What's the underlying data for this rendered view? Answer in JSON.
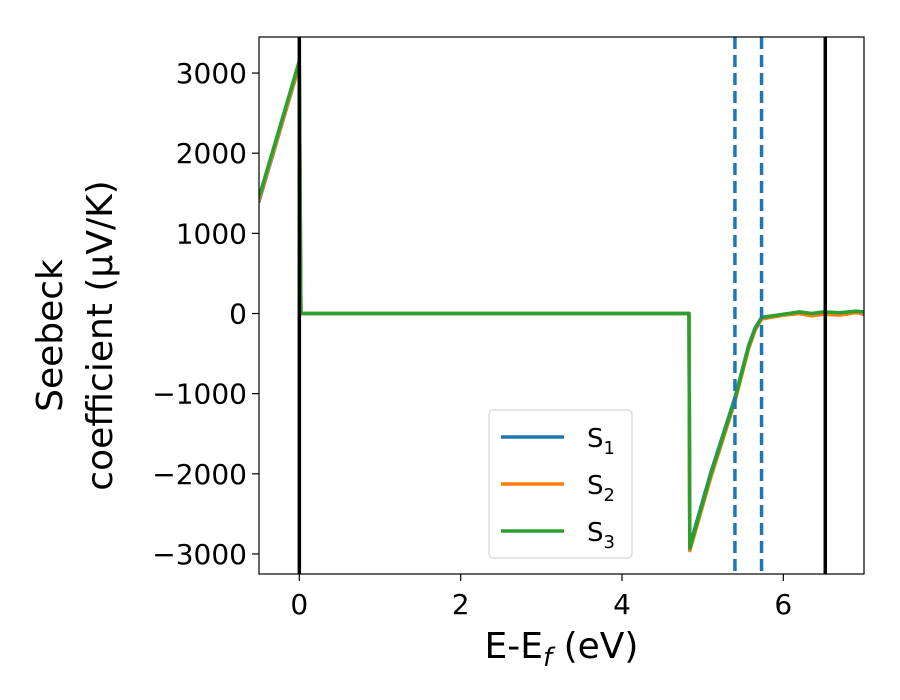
{
  "chart_data": {
    "type": "line",
    "xlabel": "E-E",
    "xlabel_sub": "f",
    "xlabel_unit": " (eV)",
    "ylabel_line1": "Seebeck",
    "ylabel_line2": "coefficient  (μV/K)",
    "xlim": [
      -0.5,
      7.0
    ],
    "ylim": [
      -3250,
      3450
    ],
    "x_ticks": [
      0,
      2,
      4,
      6
    ],
    "y_ticks": [
      -3000,
      -2000,
      -1000,
      0,
      1000,
      2000,
      3000
    ],
    "x_tick_labels": [
      "0",
      "2",
      "4",
      "6"
    ],
    "y_tick_labels": [
      "−3000",
      "−2000",
      "−1000",
      "0",
      "1000",
      "2000",
      "3000"
    ],
    "grid": false,
    "legend_position": "lower-center",
    "vlines_solid": [
      0.0,
      6.52
    ],
    "vlines_dashed": [
      5.4,
      5.73
    ],
    "colors": {
      "s1": "#1f77b4",
      "s2": "#ff7f0e",
      "s3": "#2ca02c",
      "vline_solid": "#000000",
      "vline_dashed": "#1f77b4"
    },
    "series": [
      {
        "name": "S",
        "sub": "1",
        "color": "#1f77b4",
        "x": [
          -0.5,
          -0.25,
          0.0,
          0.02,
          0.5,
          1.0,
          2.0,
          3.0,
          4.0,
          4.83,
          4.84,
          5.1,
          5.4,
          5.57,
          5.65,
          5.73,
          6.0,
          6.2,
          6.35,
          6.5,
          6.7,
          6.9,
          7.0
        ],
        "y": [
          1400,
          2250,
          3100,
          0,
          0,
          0,
          0,
          0,
          0,
          0,
          -2900,
          -1990,
          -1050,
          -400,
          -180,
          -50,
          -10,
          10,
          -20,
          10,
          -10,
          20,
          -10
        ]
      },
      {
        "name": "S",
        "sub": "2",
        "color": "#ff7f0e",
        "x": [
          -0.5,
          -0.25,
          0.0,
          0.02,
          0.5,
          1.0,
          2.0,
          3.0,
          4.0,
          4.83,
          4.84,
          5.1,
          5.4,
          5.57,
          5.65,
          5.73,
          6.0,
          6.2,
          6.35,
          6.5,
          6.7,
          6.9,
          7.0
        ],
        "y": [
          1420,
          2260,
          3110,
          0,
          0,
          0,
          0,
          0,
          0,
          0,
          -2960,
          -2050,
          -1100,
          -440,
          -210,
          -70,
          -20,
          0,
          -30,
          -10,
          -20,
          10,
          0
        ]
      },
      {
        "name": "S",
        "sub": "3",
        "color": "#2ca02c",
        "x": [
          -0.5,
          -0.25,
          0.0,
          0.02,
          0.5,
          1.0,
          2.0,
          3.0,
          4.0,
          4.83,
          4.84,
          5.1,
          5.4,
          5.57,
          5.65,
          5.73,
          6.0,
          6.2,
          6.35,
          6.5,
          6.7,
          6.9,
          7.0
        ],
        "y": [
          1450,
          2300,
          3150,
          0,
          0,
          0,
          0,
          0,
          0,
          0,
          -2930,
          -2010,
          -1070,
          -410,
          -190,
          -50,
          -10,
          20,
          0,
          20,
          10,
          30,
          20
        ]
      }
    ]
  }
}
